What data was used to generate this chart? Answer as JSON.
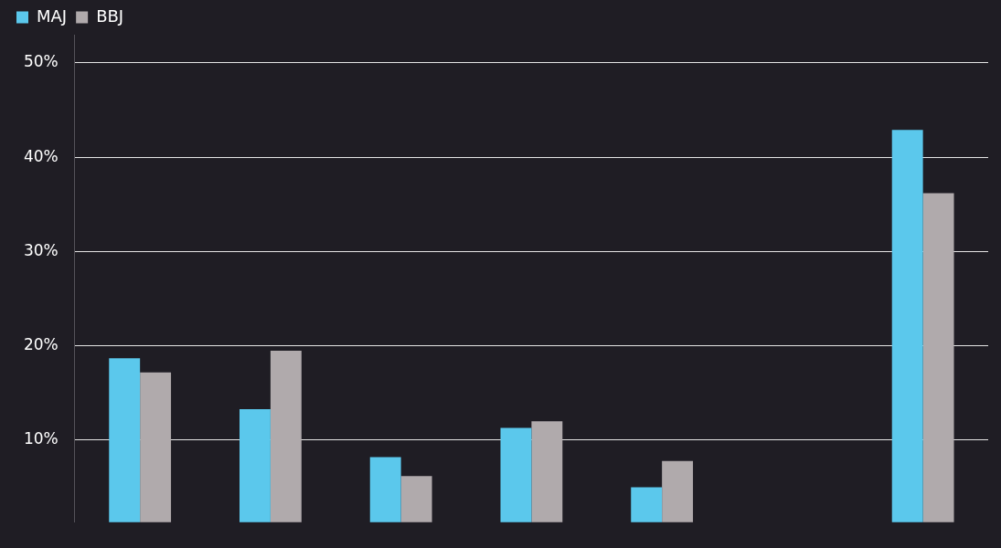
{
  "chart_data": {
    "type": "bar",
    "categories": [
      null,
      null,
      null,
      null,
      null,
      null,
      null
    ],
    "series": [
      {
        "name": "MAJ",
        "color": "#5bc8ec",
        "values": [
          18.7,
          13.3,
          8.2,
          11.3,
          5.0,
          null,
          42.9
        ]
      },
      {
        "name": "BBJ",
        "color": "#b0aaac",
        "values": [
          17.2,
          19.5,
          6.2,
          12.0,
          7.8,
          null,
          36.2
        ]
      }
    ],
    "ylim": [
      1.3,
      53
    ],
    "yticks": [
      {
        "value": 10,
        "label": "10%"
      },
      {
        "value": 20,
        "label": "20%"
      },
      {
        "value": 30,
        "label": "30%"
      },
      {
        "value": 40,
        "label": "40%"
      },
      {
        "value": 50,
        "label": "50%"
      }
    ],
    "grid": "y",
    "legend": "top left"
  }
}
